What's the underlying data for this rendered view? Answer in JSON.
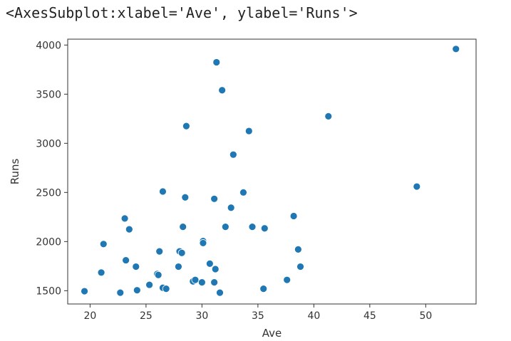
{
  "output_text": "<AxesSubplot:xlabel='Ave', ylabel='Runs'>",
  "chart_data": {
    "type": "scatter",
    "xlabel": "Ave",
    "ylabel": "Runs",
    "xlim": [
      18.0,
      54.5
    ],
    "ylim": [
      1365,
      4060
    ],
    "xticks": [
      20,
      25,
      30,
      35,
      40,
      45,
      50
    ],
    "yticks": [
      1500,
      2000,
      2500,
      3000,
      3500,
      4000
    ],
    "grid": false,
    "marker_color": "#1f77b4",
    "points": [
      {
        "x": 19.5,
        "y": 1495
      },
      {
        "x": 21.0,
        "y": 1685
      },
      {
        "x": 21.2,
        "y": 1975
      },
      {
        "x": 22.7,
        "y": 1480
      },
      {
        "x": 23.1,
        "y": 2235
      },
      {
        "x": 23.2,
        "y": 1810
      },
      {
        "x": 23.5,
        "y": 2125
      },
      {
        "x": 24.1,
        "y": 1745
      },
      {
        "x": 24.2,
        "y": 1505
      },
      {
        "x": 25.3,
        "y": 1560
      },
      {
        "x": 26.0,
        "y": 1670
      },
      {
        "x": 26.1,
        "y": 1660
      },
      {
        "x": 26.2,
        "y": 1900
      },
      {
        "x": 26.5,
        "y": 2510
      },
      {
        "x": 26.5,
        "y": 1530
      },
      {
        "x": 26.8,
        "y": 1520
      },
      {
        "x": 27.9,
        "y": 1745
      },
      {
        "x": 28.0,
        "y": 1900
      },
      {
        "x": 28.2,
        "y": 1885
      },
      {
        "x": 28.3,
        "y": 2150
      },
      {
        "x": 28.5,
        "y": 2450
      },
      {
        "x": 28.6,
        "y": 3175
      },
      {
        "x": 29.2,
        "y": 1595
      },
      {
        "x": 29.4,
        "y": 1610
      },
      {
        "x": 30.0,
        "y": 1585
      },
      {
        "x": 30.1,
        "y": 2005
      },
      {
        "x": 30.1,
        "y": 1985
      },
      {
        "x": 30.7,
        "y": 1775
      },
      {
        "x": 31.1,
        "y": 2435
      },
      {
        "x": 31.1,
        "y": 1585
      },
      {
        "x": 31.2,
        "y": 1720
      },
      {
        "x": 31.3,
        "y": 3825
      },
      {
        "x": 31.6,
        "y": 1480
      },
      {
        "x": 31.8,
        "y": 3540
      },
      {
        "x": 32.1,
        "y": 2150
      },
      {
        "x": 32.6,
        "y": 2345
      },
      {
        "x": 32.8,
        "y": 2885
      },
      {
        "x": 33.7,
        "y": 2500
      },
      {
        "x": 34.2,
        "y": 3125
      },
      {
        "x": 34.5,
        "y": 2150
      },
      {
        "x": 35.5,
        "y": 1520
      },
      {
        "x": 35.6,
        "y": 2135
      },
      {
        "x": 37.6,
        "y": 1610
      },
      {
        "x": 38.2,
        "y": 2260
      },
      {
        "x": 38.6,
        "y": 1920
      },
      {
        "x": 38.8,
        "y": 1745
      },
      {
        "x": 41.3,
        "y": 3275
      },
      {
        "x": 49.2,
        "y": 2560
      },
      {
        "x": 52.7,
        "y": 3960
      }
    ]
  }
}
